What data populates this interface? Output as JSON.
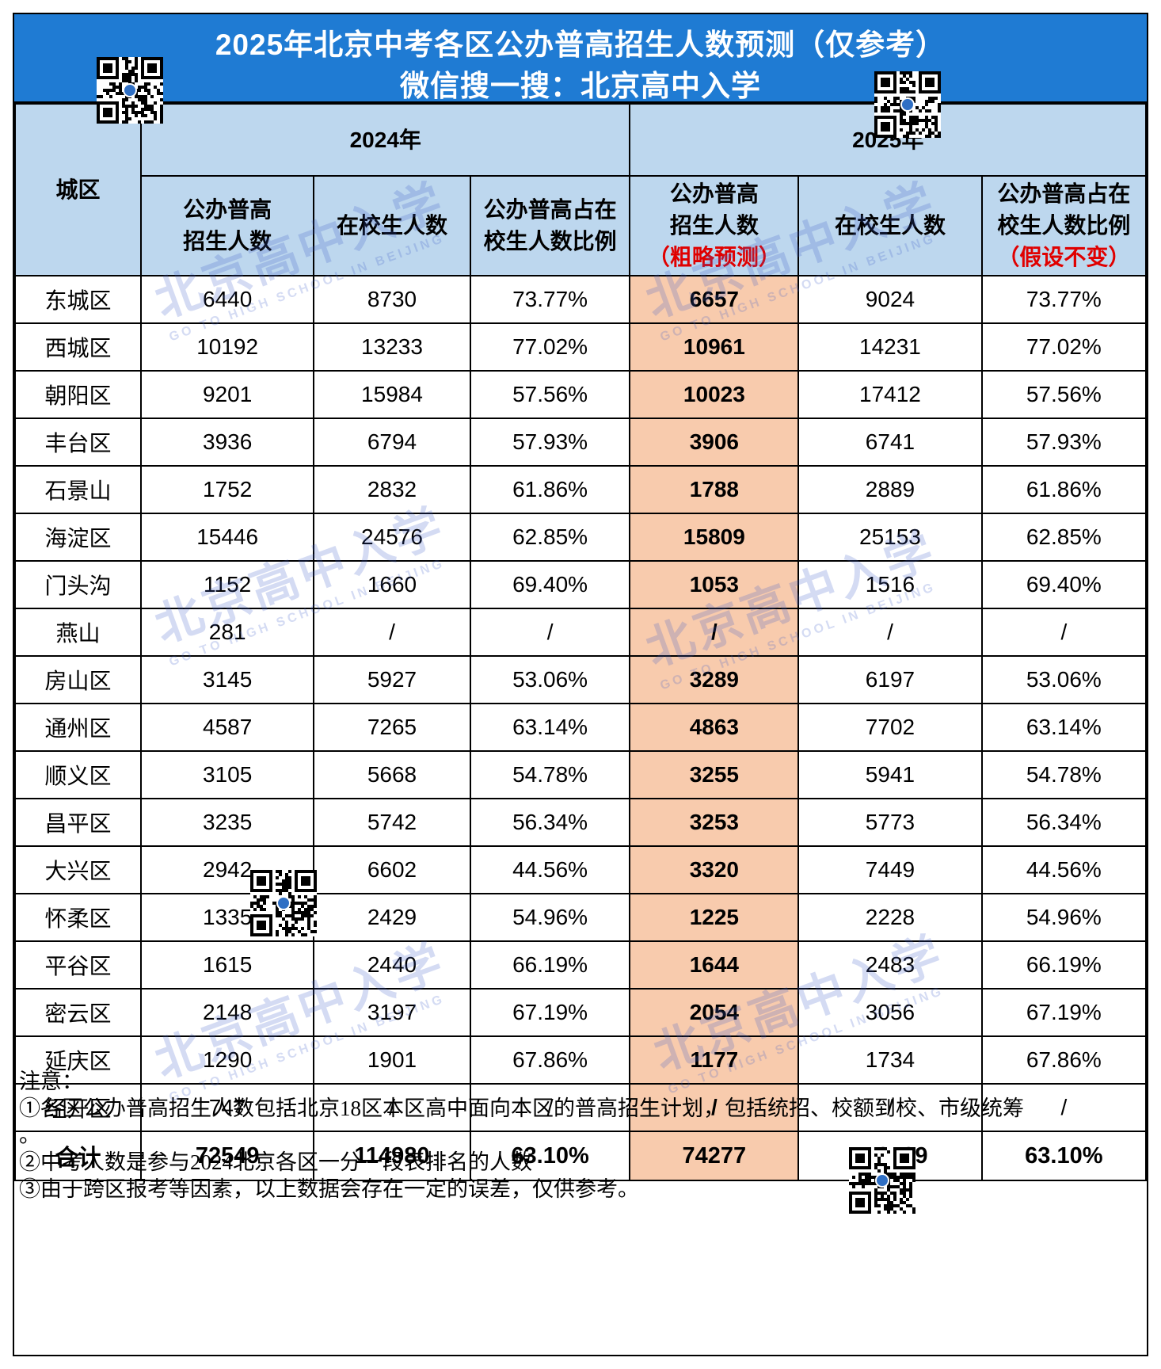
{
  "title": {
    "line1": "2025年北京中考各区公办普高招生人数预测（仅参考）",
    "line2": "微信搜一搜：北京高中入学"
  },
  "header": {
    "district": "城区",
    "year_2024": "2024年",
    "year_2025": "2025年",
    "col_enroll": "公办普高招生人数",
    "col_enroll_l1": "公办普高",
    "col_enroll_l2": "招生人数",
    "col_students": "在校生人数",
    "col_ratio_l1": "公办普高占在",
    "col_ratio_l2": "校生人数比例",
    "col_enroll_pred_l1": "公办普高",
    "col_enroll_pred_l2": "招生人数",
    "col_enroll_pred_note": "（粗略预测）",
    "col_ratio_pred_note": "（假设不变）"
  },
  "rows": [
    [
      "东城区",
      "6440",
      "8730",
      "73.77%",
      "6657",
      "9024",
      "73.77%"
    ],
    [
      "西城区",
      "10192",
      "13233",
      "77.02%",
      "10961",
      "14231",
      "77.02%"
    ],
    [
      "朝阳区",
      "9201",
      "15984",
      "57.56%",
      "10023",
      "17412",
      "57.56%"
    ],
    [
      "丰台区",
      "3936",
      "6794",
      "57.93%",
      "3906",
      "6741",
      "57.93%"
    ],
    [
      "石景山",
      "1752",
      "2832",
      "61.86%",
      "1788",
      "2889",
      "61.86%"
    ],
    [
      "海淀区",
      "15446",
      "24576",
      "62.85%",
      "15809",
      "25153",
      "62.85%"
    ],
    [
      "门头沟",
      "1152",
      "1660",
      "69.40%",
      "1053",
      "1516",
      "69.40%"
    ],
    [
      "燕山",
      "281",
      "/",
      "/",
      "/",
      "/",
      "/"
    ],
    [
      "房山区",
      "3145",
      "5927",
      "53.06%",
      "3289",
      "6197",
      "53.06%"
    ],
    [
      "通州区",
      "4587",
      "7265",
      "63.14%",
      "4863",
      "7702",
      "63.14%"
    ],
    [
      "顺义区",
      "3105",
      "5668",
      "54.78%",
      "3255",
      "5941",
      "54.78%"
    ],
    [
      "昌平区",
      "3235",
      "5742",
      "56.34%",
      "3253",
      "5773",
      "56.34%"
    ],
    [
      "大兴区",
      "2942",
      "6602",
      "44.56%",
      "3320",
      "7449",
      "44.56%"
    ],
    [
      "怀柔区",
      "1335",
      "2429",
      "54.96%",
      "1225",
      "2228",
      "54.96%"
    ],
    [
      "平谷区",
      "1615",
      "2440",
      "66.19%",
      "1644",
      "2483",
      "66.19%"
    ],
    [
      "密云区",
      "2148",
      "3197",
      "67.19%",
      "2054",
      "3056",
      "67.19%"
    ],
    [
      "延庆区",
      "1290",
      "1901",
      "67.86%",
      "1177",
      "1734",
      "67.86%"
    ],
    [
      "经开区",
      "747",
      "/",
      "/",
      "/",
      "/",
      "/"
    ]
  ],
  "total": [
    "合计",
    "72549",
    "114980",
    "63.10%",
    "74277",
    "119529",
    "63.10%"
  ],
  "notes": {
    "heading": "注意：",
    "n1": "①各区公办普高招生人数包括北京18区本区高中面向本区的普高招生计划，包括统招、校额到校、市级统筹",
    "n1_tail": "。",
    "n2": "②中考人数是参与2024北京各区一分一段表排名的人数",
    "n3": "③由于跨区报考等因素，以上数据会存在一定的误差，仅供参考。"
  },
  "watermark": {
    "cn": "北京高中入学",
    "en": "GO TO HIGH SCHOOL IN BEIJING"
  },
  "colors": {
    "title_bg": "#1f7bd3",
    "header_bg": "#bdd7ee",
    "highlight_bg": "#f8cbad",
    "note_red": "#e00000"
  }
}
